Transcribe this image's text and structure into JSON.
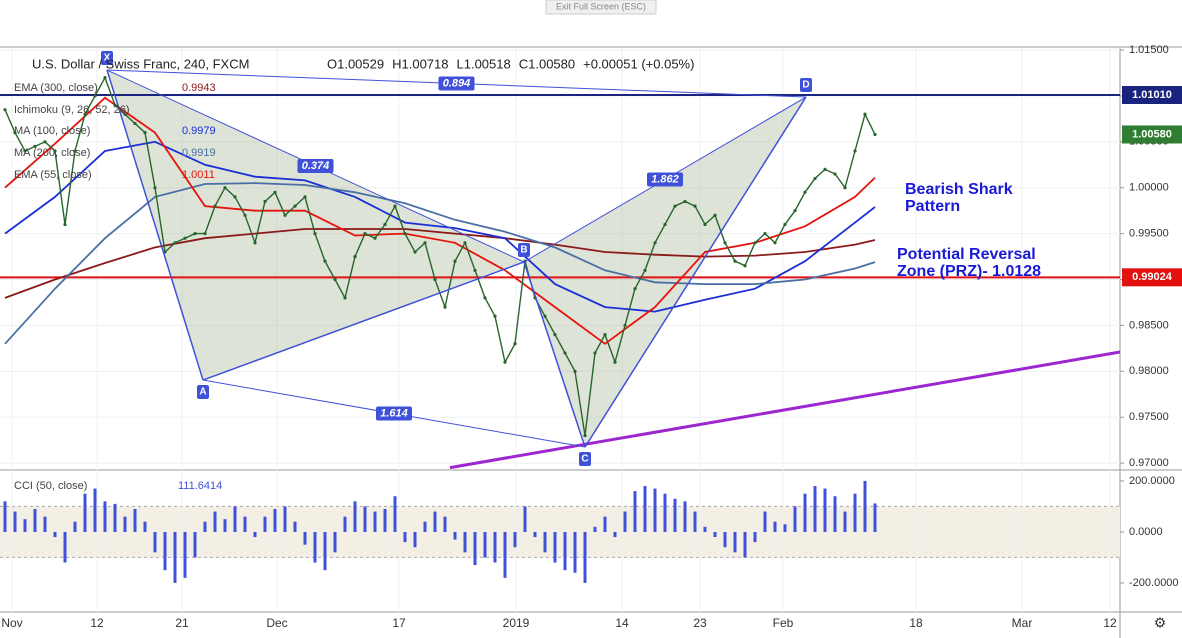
{
  "chart_data": [
    {
      "type": "line",
      "title": "U.S. Dollar / Swiss Franc, 240, FXCM",
      "quote": [
        "O1.00529",
        "H1.00718",
        "L1.00518",
        "C1.00580",
        "+0.00051 (+0.05%)"
      ],
      "xlim": [
        -0.5,
        111.5
      ],
      "xticks": [
        {
          "value": 0.7,
          "label": "Nov"
        },
        {
          "value": 9.2,
          "label": "12"
        },
        {
          "value": 17.7,
          "label": "21"
        },
        {
          "value": 27.2,
          "label": "Dec"
        },
        {
          "value": 39.4,
          "label": "17"
        },
        {
          "value": 51.1,
          "label": "2019"
        },
        {
          "value": 61.7,
          "label": "14"
        },
        {
          "value": 69.5,
          "label": "23"
        },
        {
          "value": 77.8,
          "label": "Feb"
        },
        {
          "value": 91.1,
          "label": "18"
        },
        {
          "value": 101.7,
          "label": "Mar"
        },
        {
          "value": 110.5,
          "label": "12"
        }
      ],
      "ylim": [
        0.96925,
        1.01522
      ],
      "yticks": [
        {
          "value": 0.97,
          "label": "0.97000"
        },
        {
          "value": 0.975,
          "label": "0.97500"
        },
        {
          "value": 0.98,
          "label": "0.98000"
        },
        {
          "value": 0.985,
          "label": "0.98500"
        },
        {
          "value": 0.99,
          "label": "0.99000"
        },
        {
          "value": 0.995,
          "label": "0.99500"
        },
        {
          "value": 1.0,
          "label": "1.00000"
        },
        {
          "value": 1.005,
          "label": "1.00500"
        },
        {
          "value": 1.01,
          "label": "1.01000"
        },
        {
          "value": 1.015,
          "label": "1.01500"
        }
      ],
      "grid": true,
      "series": [
        {
          "name": "U.S. Dollar / Swiss Franc, 240, FXCM",
          "color": "#26652b",
          "x": [
            0,
            1,
            2,
            3,
            4,
            5,
            6,
            7,
            8,
            9,
            10,
            11,
            12,
            13,
            14,
            15,
            16,
            17,
            18,
            19,
            20,
            21,
            22,
            23,
            24,
            25,
            26,
            27,
            28,
            29,
            30,
            31,
            32,
            33,
            34,
            35,
            36,
            37,
            38,
            39,
            40,
            41,
            42,
            43,
            44,
            45,
            46,
            47,
            48,
            49,
            50,
            51,
            52,
            53,
            54,
            55,
            56,
            57,
            58,
            59,
            60,
            61,
            62,
            63,
            64,
            65,
            66,
            67,
            68,
            69,
            70,
            71,
            72,
            73,
            74,
            75,
            76,
            77,
            78,
            79,
            80,
            81,
            82,
            83,
            84,
            85,
            86,
            87
          ],
          "values": [
            1.0085,
            1.006,
            1.004,
            1.0045,
            1.005,
            1.004,
            0.996,
            1.004,
            1.008,
            1.01,
            1.012,
            1.009,
            1.008,
            1.007,
            1.006,
            1.0,
            0.993,
            0.994,
            0.9945,
            0.995,
            0.995,
            0.998,
            1.0,
            0.999,
            0.997,
            0.994,
            0.9985,
            0.9995,
            0.997,
            0.998,
            0.999,
            0.995,
            0.992,
            0.99,
            0.988,
            0.9925,
            0.995,
            0.9945,
            0.996,
            0.998,
            0.995,
            0.993,
            0.994,
            0.99,
            0.987,
            0.992,
            0.994,
            0.991,
            0.988,
            0.986,
            0.981,
            0.983,
            0.992,
            0.988,
            0.986,
            0.984,
            0.982,
            0.98,
            0.973,
            0.982,
            0.984,
            0.981,
            0.985,
            0.989,
            0.991,
            0.994,
            0.996,
            0.998,
            0.9985,
            0.998,
            0.996,
            0.997,
            0.994,
            0.992,
            0.9915,
            0.994,
            0.995,
            0.994,
            0.996,
            0.9975,
            0.9995,
            1.001,
            1.002,
            1.0015,
            1.0,
            1.004,
            1.008,
            1.0058
          ]
        },
        {
          "name": "EMA (300, close)",
          "color": "#8b1a1a",
          "x": [
            0,
            5,
            10,
            15,
            20,
            25,
            30,
            35,
            40,
            45,
            50,
            55,
            60,
            65,
            70,
            75,
            80,
            85,
            87
          ],
          "values": [
            0.988,
            0.99,
            0.9918,
            0.9935,
            0.9945,
            0.995,
            0.9955,
            0.9955,
            0.9955,
            0.995,
            0.9945,
            0.9938,
            0.993,
            0.9927,
            0.9925,
            0.9926,
            0.993,
            0.9938,
            0.9943
          ]
        },
        {
          "name": "MA (100, close)",
          "color": "#1a2fd6",
          "x": [
            0,
            5,
            10,
            15,
            20,
            25,
            30,
            35,
            40,
            45,
            50,
            55,
            60,
            65,
            70,
            75,
            80,
            85,
            87
          ],
          "values": [
            0.995,
            0.999,
            1.004,
            1.005,
            1.0025,
            1.0012,
            1.0008,
            0.999,
            0.9962,
            0.9956,
            0.9945,
            0.9895,
            0.987,
            0.9865,
            0.9878,
            0.989,
            0.992,
            0.9962,
            0.9979
          ]
        },
        {
          "name": "MA (200, close)",
          "color": "#4a6fa5",
          "x": [
            0,
            5,
            10,
            15,
            20,
            25,
            30,
            35,
            40,
            45,
            50,
            55,
            60,
            65,
            70,
            75,
            80,
            85,
            87
          ],
          "values": [
            0.983,
            0.989,
            0.9945,
            0.999,
            1.0004,
            1.0005,
            1.0003,
            0.9995,
            0.9983,
            0.9965,
            0.9952,
            0.9935,
            0.991,
            0.9897,
            0.9895,
            0.9895,
            0.99,
            0.9912,
            0.9919
          ]
        },
        {
          "name": "EMA (55, close)",
          "color": "#e8120c",
          "x": [
            0,
            5,
            10,
            15,
            20,
            25,
            30,
            35,
            40,
            45,
            50,
            55,
            60,
            65,
            70,
            75,
            80,
            85,
            87
          ],
          "values": [
            1.0,
            1.0048,
            1.0098,
            1.006,
            0.998,
            0.9975,
            0.9975,
            0.9948,
            0.995,
            0.994,
            0.991,
            0.987,
            0.983,
            0.987,
            0.993,
            0.994,
            0.9958,
            0.999,
            1.0011
          ]
        }
      ],
      "other_legend": [
        "Ichimoku (9, 26, 52, 26)"
      ],
      "last_price": {
        "value": 1.0058,
        "label": "1.00580",
        "color": "#2e7d32"
      },
      "hlines": [
        {
          "value": 1.0101,
          "label": "1.01010",
          "color": "#1a237e"
        },
        {
          "value": 0.99024,
          "label": "0.99024",
          "color": "#e31010"
        }
      ],
      "trendline": {
        "x": [
          44.5,
          111.5
        ],
        "values": [
          0.96951,
          0.9821
        ],
        "color": "#9c27d0"
      },
      "pattern": {
        "color": "#3f51d8",
        "points": [
          {
            "label": "X",
            "x": 10.2,
            "y": 1.01282
          },
          {
            "label": "A",
            "x": 19.8,
            "y": 0.97905
          },
          {
            "label": "B",
            "x": 51.9,
            "y": 0.99191
          },
          {
            "label": "C",
            "x": 58,
            "y": 0.97175
          },
          {
            "label": "D",
            "x": 80.1,
            "y": 1.00988
          }
        ],
        "ratios": [
          0.894,
          0.374,
          1.862,
          1.614
        ]
      },
      "annotations": [
        {
          "lines": [
            "Bearish Shark",
            "Pattern"
          ]
        },
        {
          "lines": [
            "Potential Reversal",
            "Zone (PRZ)- 1.0128"
          ]
        }
      ]
    },
    {
      "type": "bar",
      "title": "CCI (50, close)",
      "color": "#3f51d8",
      "ylim": [
        -314,
        235
      ],
      "yticks": [
        {
          "value": 200,
          "label": "200.0000"
        },
        {
          "value": 0,
          "label": "0.0000"
        },
        {
          "value": -200,
          "label": "-200.0000"
        }
      ],
      "band": [
        -100,
        100
      ],
      "values": [
        120,
        80,
        50,
        90,
        60,
        -20,
        -120,
        40,
        150,
        170,
        120,
        110,
        60,
        90,
        40,
        -80,
        -150,
        -200,
        -180,
        -100,
        40,
        80,
        50,
        100,
        60,
        -20,
        60,
        90,
        100,
        40,
        -50,
        -120,
        -150,
        -80,
        60,
        120,
        100,
        80,
        90,
        140,
        -40,
        -60,
        40,
        80,
        60,
        -30,
        -80,
        -130,
        -100,
        -120,
        -180,
        -60,
        100,
        -20,
        -80,
        -120,
        -150,
        -160,
        -200,
        20,
        60,
        -20,
        80,
        160,
        180,
        170,
        150,
        130,
        120,
        80,
        20,
        -20,
        -60,
        -80,
        -100,
        -40,
        80,
        40,
        30,
        100,
        150,
        180,
        170,
        140,
        80,
        150,
        200,
        111.6414
      ]
    }
  ]
}
